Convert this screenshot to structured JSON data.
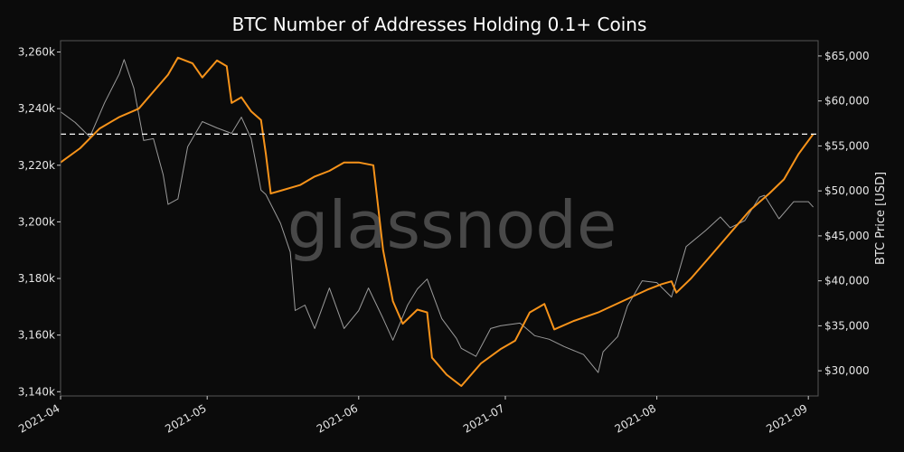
{
  "chart_data": {
    "type": "line",
    "title": "BTC Number of Addresses Holding 0.1+ Coins",
    "watermark": "glassnode",
    "ylabel_right": "BTC Price [USD]",
    "x_ticks": [
      "2021-04",
      "2021-05",
      "2021-06",
      "2021-07",
      "2021-08",
      "2021-09"
    ],
    "y_left_ticks": [
      {
        "value": 3140000,
        "label": "3,140k"
      },
      {
        "value": 3160000,
        "label": "3,160k"
      },
      {
        "value": 3180000,
        "label": "3,180k"
      },
      {
        "value": 3200000,
        "label": "3,200k"
      },
      {
        "value": 3220000,
        "label": "3,220k"
      },
      {
        "value": 3240000,
        "label": "3,240k"
      },
      {
        "value": 3260000,
        "label": "3,260k"
      }
    ],
    "y_right_ticks": [
      {
        "value": 30000,
        "label": "$30,000"
      },
      {
        "value": 35000,
        "label": "$35,000"
      },
      {
        "value": 40000,
        "label": "$40,000"
      },
      {
        "value": 45000,
        "label": "$45,000"
      },
      {
        "value": 50000,
        "label": "$50,000"
      },
      {
        "value": 55000,
        "label": "$55,000"
      },
      {
        "value": 60000,
        "label": "$60,000"
      },
      {
        "value": 65000,
        "label": "$65,000"
      }
    ],
    "x_range": [
      "2021-04-01",
      "2021-09-03"
    ],
    "y_left_range": [
      3138500,
      3264000
    ],
    "y_right_range": [
      27200,
      66700
    ],
    "reference_line": {
      "axis": "left",
      "value": 3231000,
      "style": "dashed",
      "color": "#ffffff"
    },
    "grid": false,
    "colors": {
      "background": "#0b0b0b",
      "addresses": "#f7931a",
      "price": "#9a9a9a",
      "axis": "#555555"
    },
    "series": [
      {
        "axis": "left",
        "points": [
          [
            "2021-04-01",
            3221000
          ],
          [
            "2021-04-05",
            3226000
          ],
          [
            "2021-04-09",
            3233000
          ],
          [
            "2021-04-13",
            3237000
          ],
          [
            "2021-04-17",
            3240000
          ],
          [
            "2021-04-20",
            3246000
          ],
          [
            "2021-04-23",
            3252000
          ],
          [
            "2021-04-25",
            3258000
          ],
          [
            "2021-04-28",
            3256000
          ],
          [
            "2021-04-30",
            3251000
          ],
          [
            "2021-05-03",
            3257000
          ],
          [
            "2021-05-05",
            3255000
          ],
          [
            "2021-05-06",
            3242000
          ],
          [
            "2021-05-08",
            3244000
          ],
          [
            "2021-05-10",
            3239000
          ],
          [
            "2021-05-12",
            3236000
          ],
          [
            "2021-05-13",
            3224000
          ],
          [
            "2021-05-14",
            3210000
          ],
          [
            "2021-05-16",
            3211000
          ],
          [
            "2021-05-20",
            3213000
          ],
          [
            "2021-05-23",
            3216000
          ],
          [
            "2021-05-26",
            3218000
          ],
          [
            "2021-05-29",
            3221000
          ],
          [
            "2021-06-01",
            3221000
          ],
          [
            "2021-06-04",
            3220000
          ],
          [
            "2021-06-06",
            3190000
          ],
          [
            "2021-06-08",
            3172000
          ],
          [
            "2021-06-10",
            3164000
          ],
          [
            "2021-06-13",
            3169000
          ],
          [
            "2021-06-15",
            3168000
          ],
          [
            "2021-06-16",
            3152000
          ],
          [
            "2021-06-19",
            3146000
          ],
          [
            "2021-06-22",
            3142000
          ],
          [
            "2021-06-26",
            3150000
          ],
          [
            "2021-06-30",
            3155000
          ],
          [
            "2021-07-03",
            3158000
          ],
          [
            "2021-07-06",
            3168000
          ],
          [
            "2021-07-09",
            3171000
          ],
          [
            "2021-07-11",
            3162000
          ],
          [
            "2021-07-15",
            3165000
          ],
          [
            "2021-07-20",
            3168000
          ],
          [
            "2021-07-25",
            3172000
          ],
          [
            "2021-07-30",
            3176000
          ],
          [
            "2021-08-02",
            3178000
          ],
          [
            "2021-08-04",
            3179000
          ],
          [
            "2021-08-05",
            3175000
          ],
          [
            "2021-08-08",
            3180000
          ],
          [
            "2021-08-12",
            3188000
          ],
          [
            "2021-08-16",
            3196000
          ],
          [
            "2021-08-20",
            3204000
          ],
          [
            "2021-08-24",
            3210000
          ],
          [
            "2021-08-27",
            3215000
          ],
          [
            "2021-08-30",
            3224000
          ],
          [
            "2021-09-02",
            3231000
          ]
        ]
      },
      {
        "axis": "right",
        "points": [
          [
            "2021-04-01",
            58800
          ],
          [
            "2021-04-04",
            57600
          ],
          [
            "2021-04-07",
            56000
          ],
          [
            "2021-04-10",
            59800
          ],
          [
            "2021-04-13",
            63000
          ],
          [
            "2021-04-14",
            64600
          ],
          [
            "2021-04-16",
            61400
          ],
          [
            "2021-04-18",
            55600
          ],
          [
            "2021-04-20",
            55800
          ],
          [
            "2021-04-22",
            51800
          ],
          [
            "2021-04-23",
            48500
          ],
          [
            "2021-04-25",
            49100
          ],
          [
            "2021-04-27",
            54900
          ],
          [
            "2021-04-30",
            57700
          ],
          [
            "2021-05-03",
            57000
          ],
          [
            "2021-05-06",
            56400
          ],
          [
            "2021-05-08",
            58200
          ],
          [
            "2021-05-10",
            55800
          ],
          [
            "2021-05-12",
            50100
          ],
          [
            "2021-05-13",
            49600
          ],
          [
            "2021-05-16",
            46400
          ],
          [
            "2021-05-18",
            43200
          ],
          [
            "2021-05-19",
            36700
          ],
          [
            "2021-05-21",
            37300
          ],
          [
            "2021-05-23",
            34700
          ],
          [
            "2021-05-26",
            39200
          ],
          [
            "2021-05-29",
            34700
          ],
          [
            "2021-06-01",
            36700
          ],
          [
            "2021-06-03",
            39200
          ],
          [
            "2021-06-06",
            35800
          ],
          [
            "2021-06-08",
            33400
          ],
          [
            "2021-06-11",
            37300
          ],
          [
            "2021-06-13",
            39100
          ],
          [
            "2021-06-15",
            40200
          ],
          [
            "2021-06-18",
            35800
          ],
          [
            "2021-06-21",
            33600
          ],
          [
            "2021-06-22",
            32500
          ],
          [
            "2021-06-25",
            31600
          ],
          [
            "2021-06-28",
            34700
          ],
          [
            "2021-06-30",
            35000
          ],
          [
            "2021-07-04",
            35300
          ],
          [
            "2021-07-07",
            33900
          ],
          [
            "2021-07-10",
            33500
          ],
          [
            "2021-07-13",
            32700
          ],
          [
            "2021-07-17",
            31800
          ],
          [
            "2021-07-20",
            29800
          ],
          [
            "2021-07-21",
            32100
          ],
          [
            "2021-07-24",
            33800
          ],
          [
            "2021-07-26",
            37200
          ],
          [
            "2021-07-29",
            40000
          ],
          [
            "2021-08-01",
            39800
          ],
          [
            "2021-08-04",
            38200
          ],
          [
            "2021-08-07",
            43800
          ],
          [
            "2021-08-11",
            45600
          ],
          [
            "2021-08-14",
            47100
          ],
          [
            "2021-08-16",
            45900
          ],
          [
            "2021-08-19",
            46700
          ],
          [
            "2021-08-22",
            49300
          ],
          [
            "2021-08-23",
            49500
          ],
          [
            "2021-08-26",
            46900
          ],
          [
            "2021-08-29",
            48800
          ],
          [
            "2021-09-01",
            48800
          ],
          [
            "2021-09-02",
            48200
          ]
        ]
      }
    ]
  }
}
